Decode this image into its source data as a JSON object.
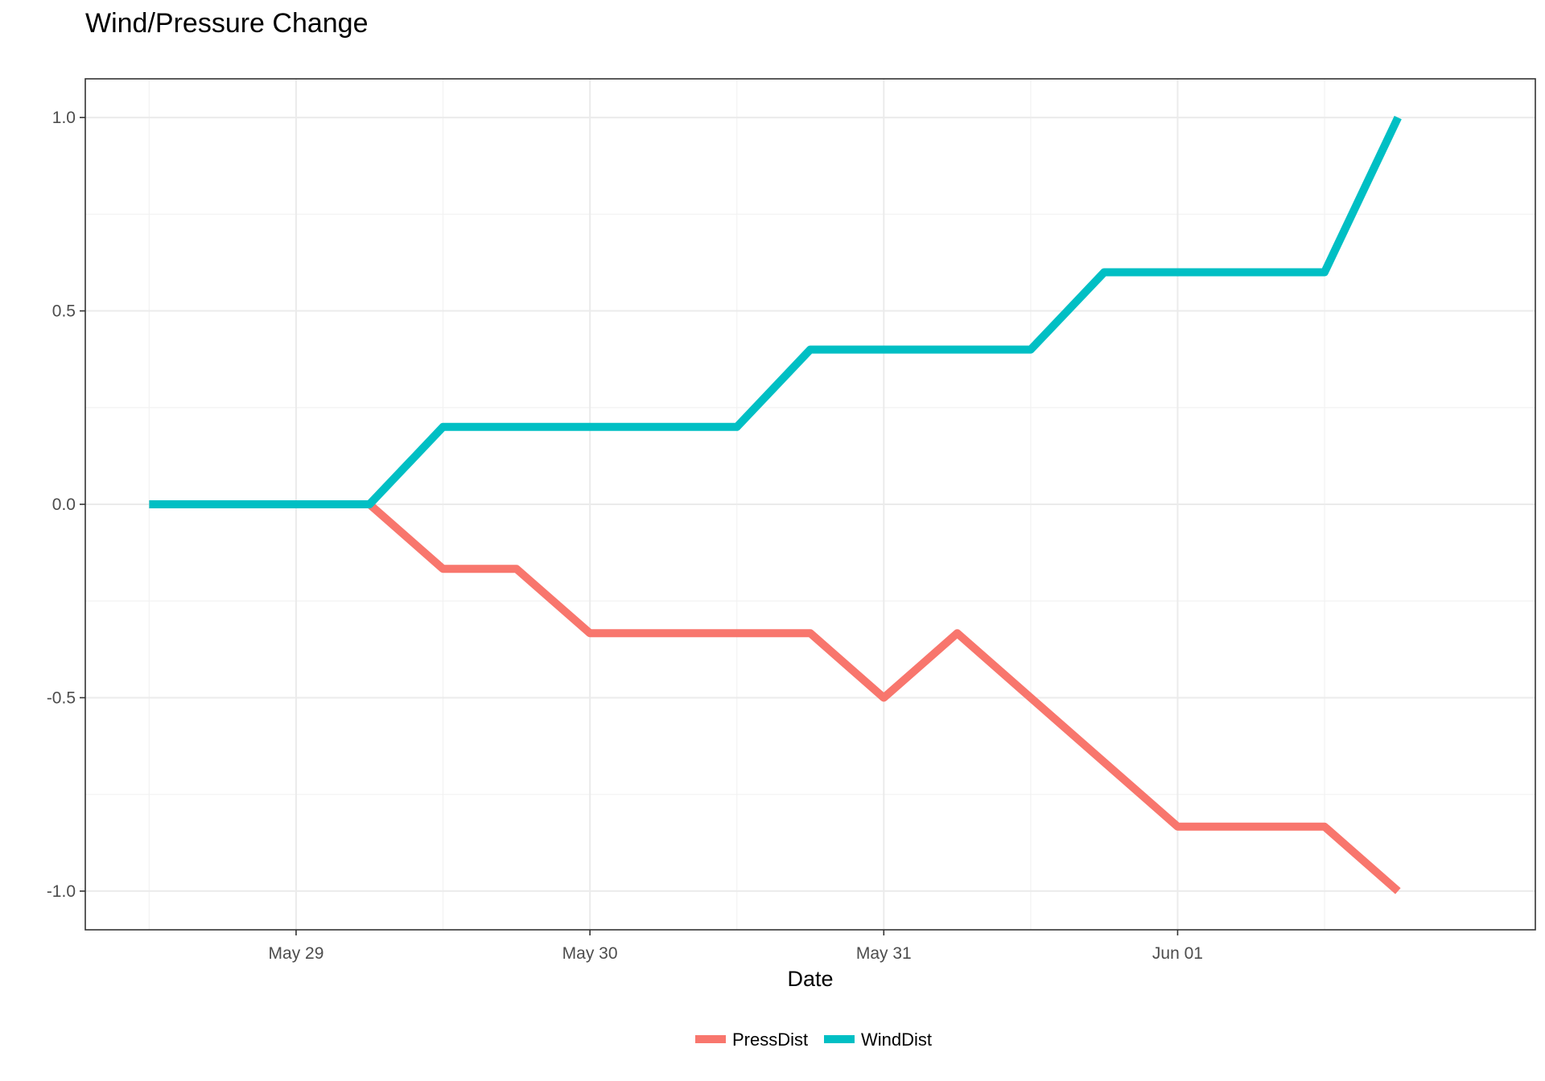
{
  "chart_data": {
    "type": "line",
    "title": "Wind/Pressure Change",
    "xlabel": "Date",
    "ylabel": "",
    "x_tick_labels": [
      "May 29",
      "May 30",
      "May 31",
      "Jun 01"
    ],
    "x_tick_values": [
      "2024-05-29 00:00",
      "2024-05-30 00:00",
      "2024-05-31 00:00",
      "2024-06-01 00:00"
    ],
    "y_ticks": [
      -1.0,
      -0.5,
      0.0,
      0.5,
      1.0
    ],
    "y_tick_labels": [
      "-1.0",
      "-0.5",
      "0.0",
      "0.5",
      "1.0"
    ],
    "xlim": [
      "2024-05-28 06:47",
      "2024-06-02 05:13"
    ],
    "ylim": [
      -1.1,
      1.1
    ],
    "grid": true,
    "legend_position": "bottom",
    "x": [
      "2024-05-28 12:00",
      "2024-05-28 18:00",
      "2024-05-29 00:00",
      "2024-05-29 06:00",
      "2024-05-29 12:00",
      "2024-05-29 18:00",
      "2024-05-30 00:00",
      "2024-05-30 06:00",
      "2024-05-30 12:00",
      "2024-05-30 18:00",
      "2024-05-31 00:00",
      "2024-05-31 06:00",
      "2024-05-31 12:00",
      "2024-05-31 18:00",
      "2024-06-01 00:00",
      "2024-06-01 06:00",
      "2024-06-01 12:00",
      "2024-06-01 18:00"
    ],
    "series": [
      {
        "name": "PressDist",
        "color": "#F8766D",
        "values": [
          0,
          0,
          0,
          0,
          -0.1667,
          -0.1667,
          -0.3333,
          -0.3333,
          -0.3333,
          -0.3333,
          -0.5,
          -0.3333,
          -0.5,
          -0.6667,
          -0.8333,
          -0.8333,
          -0.8333,
          -1.0
        ]
      },
      {
        "name": "WindDist",
        "color": "#00BFC4",
        "values": [
          0,
          0,
          0,
          0,
          0.2,
          0.2,
          0.2,
          0.2,
          0.2,
          0.4,
          0.4,
          0.4,
          0.4,
          0.6,
          0.6,
          0.6,
          0.6,
          1.0
        ]
      }
    ]
  }
}
